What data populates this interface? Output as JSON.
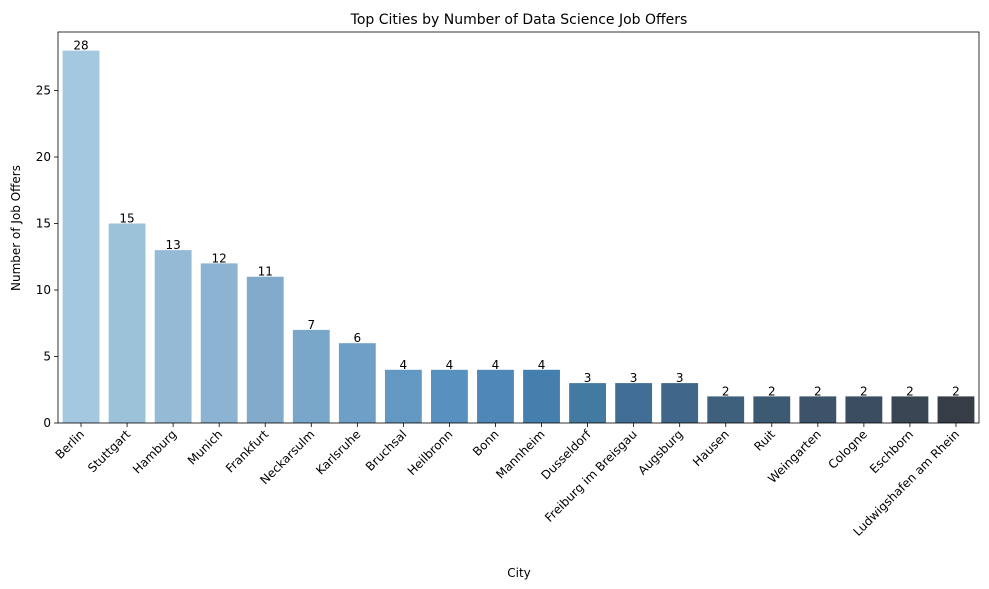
{
  "chart_data": {
    "type": "bar",
    "title": "Top Cities by Number of Data Science Job Offers",
    "xlabel": "City",
    "ylabel": "Number of Job Offers",
    "categories": [
      "Berlin",
      "Stuttgart",
      "Hamburg",
      "Munich",
      "Frankfurt",
      "Neckarsulm",
      "Karlsruhe",
      "Bruchsal",
      "Heilbronn",
      "Bonn",
      "Mannheim",
      "Dusseldorf",
      "Freiburg im Breisgau",
      "Augsburg",
      "Hausen",
      "Ruit",
      "Weingarten",
      "Cologne",
      "Eschborn",
      "Ludwigshafen am Rhein"
    ],
    "values": [
      28,
      15,
      13,
      12,
      11,
      7,
      6,
      4,
      4,
      4,
      4,
      3,
      3,
      3,
      2,
      2,
      2,
      2,
      2,
      2
    ],
    "data_labels": [
      "28",
      "15",
      "13",
      "12",
      "11",
      "7",
      "6",
      "4",
      "4",
      "4",
      "4",
      "3",
      "3",
      "3",
      "2",
      "2",
      "2",
      "2",
      "2",
      "2"
    ],
    "colors": [
      "#a4c8e0",
      "#9cc2da",
      "#95bad5",
      "#8cb3d2",
      "#82abcb",
      "#78a7c9",
      "#6e9fc7",
      "#6298c2",
      "#5891c0",
      "#4f88b8",
      "#457fae",
      "#437aa2",
      "#416e95",
      "#406789",
      "#3e607d",
      "#3d5a73",
      "#3d536a",
      "#3b4d60",
      "#394755",
      "#363d46"
    ],
    "ylim": [
      0,
      29.4
    ],
    "yticks": [
      0,
      5,
      10,
      15,
      20,
      25
    ],
    "ytick_labels": [
      "0",
      "5",
      "10",
      "15",
      "20",
      "25"
    ],
    "grid": false,
    "legend": "none"
  }
}
